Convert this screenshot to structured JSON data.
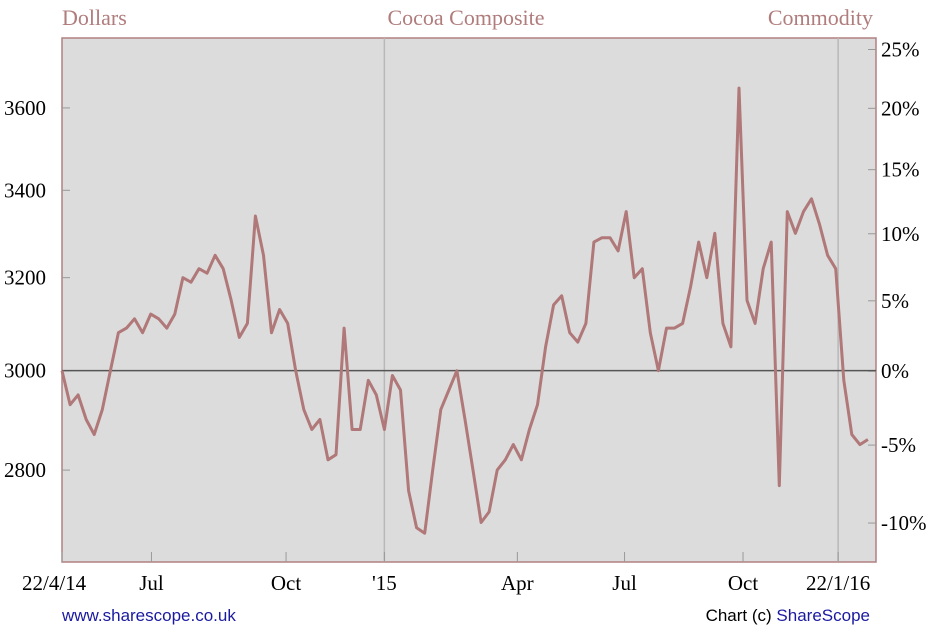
{
  "chart_data": {
    "type": "line",
    "title": "Cocoa Composite",
    "y_label": "Dollars",
    "y2_label": "Commodity",
    "footer_left": "www.sharescope.co.uk",
    "footer_right_prefix": "Chart (c)",
    "footer_right_brand": "ShareScope",
    "log_scale": true,
    "color": "#b07878",
    "hline": 3000,
    "values": [
      3000,
      2930,
      2950,
      2900,
      2870,
      2920,
      3000,
      3080,
      3090,
      3110,
      3080,
      3120,
      3110,
      3090,
      3120,
      3200,
      3190,
      3220,
      3210,
      3250,
      3220,
      3150,
      3070,
      3100,
      3340,
      3250,
      3080,
      3130,
      3100,
      3000,
      2920,
      2880,
      2900,
      2820,
      2830,
      3090,
      2880,
      2880,
      2980,
      2950,
      2880,
      2990,
      2960,
      2760,
      2690,
      2680,
      2800,
      2920,
      2960,
      3000,
      2900,
      2800,
      2700,
      2720,
      2800,
      2820,
      2850,
      2820,
      2880,
      2930,
      3050,
      3140,
      3160,
      3080,
      3060,
      3100,
      3280,
      3290,
      3290,
      3260,
      3350,
      3200,
      3220,
      3080,
      3000,
      3090,
      3090,
      3100,
      3180,
      3280,
      3200,
      3300,
      3100,
      3050,
      3650,
      3150,
      3100,
      3220,
      3280,
      2770,
      3350,
      3300,
      3350,
      3380,
      3320,
      3250,
      3220,
      2980,
      2870,
      2850,
      2860
    ],
    "xlim": [
      0,
      101
    ],
    "xticks": [
      {
        "value": 0,
        "label": "22/4/14"
      },
      {
        "value": 11.1,
        "label": "Jul"
      },
      {
        "value": 27.8,
        "label": "Oct"
      },
      {
        "value": 40,
        "label": "'15"
      },
      {
        "value": 56.5,
        "label": "Apr"
      },
      {
        "value": 69.8,
        "label": "Jul"
      },
      {
        "value": 84.5,
        "label": "Oct"
      },
      {
        "value": 96.3,
        "label": "22/1/16"
      }
    ],
    "xgrid": [
      40,
      96.3
    ],
    "ylim": [
      2627,
      3779
    ],
    "yticks": [
      2800,
      3000,
      3200,
      3400,
      3600
    ],
    "y2lim": [
      -12.4,
      26
    ],
    "y2ticks": [
      {
        "value": -10,
        "label": "-10%"
      },
      {
        "value": -5,
        "label": "-5%"
      },
      {
        "value": 0,
        "label": "0%"
      },
      {
        "value": 5,
        "label": "5%"
      },
      {
        "value": 10,
        "label": "10%"
      },
      {
        "value": 15,
        "label": "15%"
      },
      {
        "value": 20,
        "label": "20%"
      },
      {
        "value": 25,
        "label": "25%"
      }
    ]
  }
}
